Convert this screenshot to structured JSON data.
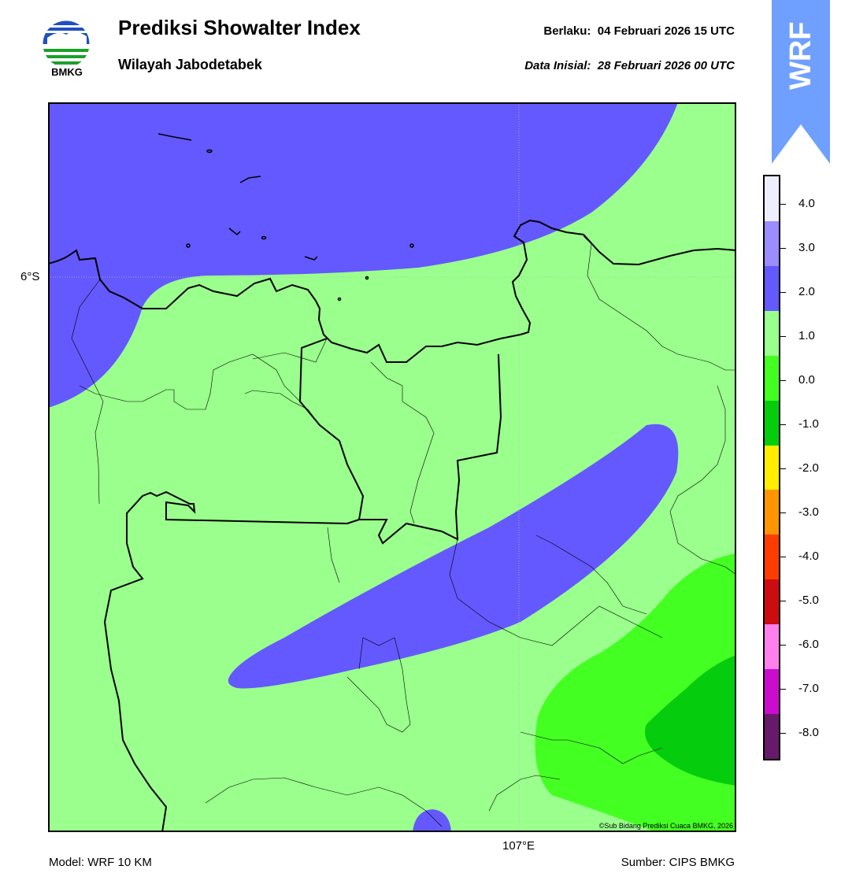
{
  "header": {
    "title": "Prediksi Showalter Index",
    "subtitle": "Wilayah Jabodetabek",
    "valid_label": "Berlaku:",
    "valid_time": "04 Februari 2026 15 UTC",
    "init_label": "Data Inisial:",
    "init_time": "28 Februari 2026 00 UTC"
  },
  "logo": {
    "text": "BMKG",
    "icon": "bmkg-logo"
  },
  "badge": {
    "text": "WRF",
    "color": "#6fa0ff"
  },
  "map": {
    "lat_label": "6°S",
    "lon_label": "107°E",
    "copyright": "©Sub Bidang Prediksi Cuaca BMKG, 2026",
    "fill_colors": {
      "range_1_to_2": "#6458ff",
      "range_0_to_1": "#9aff8c",
      "range_neg1_to_0": "#44ff22",
      "range_neg2_to_neg1": "#06cc0e"
    }
  },
  "colorbar": {
    "labels": [
      "4.0",
      "3.0",
      "2.0",
      "1.0",
      "0.0",
      "-1.0",
      "-2.0",
      "-3.0",
      "-4.0",
      "-5.0",
      "-6.0",
      "-7.0",
      "-8.0"
    ],
    "colors": [
      "#eeeeff",
      "#9b8cff",
      "#6458ff",
      "#9aff8c",
      "#44ff22",
      "#06cc0e",
      "#ffee00",
      "#ff9500",
      "#ff3c00",
      "#cc0c10",
      "#ff80ec",
      "#cc0ccc",
      "#661a6a"
    ]
  },
  "footer": {
    "model": "Model: WRF 10 KM",
    "source": "Sumber: CIPS BMKG"
  }
}
